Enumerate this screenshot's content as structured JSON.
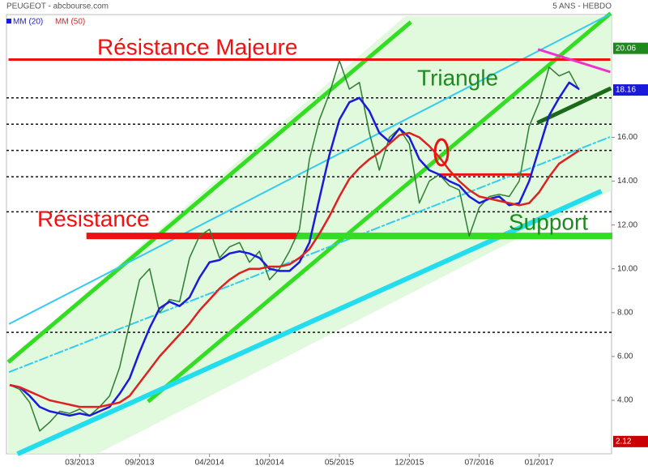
{
  "chart_data": {
    "type": "line",
    "title": "PEUGEOT - abcbourse.com",
    "subtitle": "5 ANS - HEBDO",
    "x": [
      "08/2012",
      "09/2012",
      "10/2012",
      "11/2012",
      "12/2012",
      "01/2013",
      "02/2013",
      "03/2013",
      "04/2013",
      "05/2013",
      "06/2013",
      "07/2013",
      "08/2013",
      "09/2013",
      "10/2013",
      "11/2013",
      "12/2013",
      "01/2014",
      "02/2014",
      "03/2014",
      "04/2014",
      "05/2014",
      "06/2014",
      "07/2014",
      "08/2014",
      "09/2014",
      "10/2014",
      "11/2014",
      "12/2014",
      "01/2015",
      "02/2015",
      "03/2015",
      "04/2015",
      "05/2015",
      "06/2015",
      "07/2015",
      "08/2015",
      "09/2015",
      "10/2015",
      "11/2015",
      "12/2015",
      "01/2016",
      "02/2016",
      "03/2016",
      "04/2016",
      "05/2016",
      "06/2016",
      "07/2016",
      "08/2016",
      "09/2016",
      "10/2016",
      "11/2016",
      "12/2016",
      "01/2017",
      "02/2017",
      "03/2017",
      "04/2017",
      "05/2017"
    ],
    "series": [
      {
        "color": "#2e7d32",
        "values": [
          4.7,
          4.5,
          3.9,
          2.6,
          3.0,
          3.5,
          3.4,
          3.6,
          3.3,
          3.7,
          4.2,
          5.5,
          7.5,
          9.5,
          10.0,
          8.0,
          8.6,
          8.5,
          10.5,
          11.5,
          11.8,
          10.5,
          11.0,
          11.2,
          10.3,
          10.8,
          9.5,
          10.0,
          10.8,
          11.8,
          15.0,
          16.8,
          18.0,
          19.5,
          18.2,
          18.5,
          16.2,
          14.5,
          16.0,
          16.4,
          15.7,
          13.0,
          14.0,
          14.3,
          13.8,
          13.6,
          11.5,
          12.8,
          13.3,
          13.4,
          13.3,
          14.0,
          16.5,
          17.6,
          19.2,
          18.8,
          19.0,
          18.16
        ]
      },
      {
        "name": "MM (20)",
        "color": "#1a1adb",
        "values": [
          4.7,
          4.6,
          4.2,
          3.7,
          3.5,
          3.4,
          3.3,
          3.4,
          3.3,
          3.5,
          3.7,
          4.3,
          5.0,
          6.2,
          7.3,
          8.2,
          8.5,
          8.3,
          8.7,
          9.6,
          10.3,
          10.4,
          10.7,
          10.8,
          10.7,
          10.5,
          10.0,
          9.9,
          9.9,
          10.3,
          11.2,
          13.2,
          15.2,
          16.8,
          17.6,
          17.8,
          17.2,
          16.2,
          15.8,
          16.4,
          16.0,
          15.0,
          14.5,
          14.3,
          14.0,
          13.8,
          13.3,
          13.0,
          13.2,
          13.3,
          12.9,
          13.0,
          14.0,
          15.5,
          17.0,
          17.8,
          18.5,
          18.2
        ]
      },
      {
        "name": "MM (50)",
        "color": "#dd2222",
        "values": [
          4.7,
          4.6,
          4.4,
          4.2,
          4.0,
          3.9,
          3.8,
          3.7,
          3.7,
          3.7,
          3.8,
          3.9,
          4.2,
          4.8,
          5.4,
          6.0,
          6.5,
          7.0,
          7.5,
          8.1,
          8.6,
          9.1,
          9.5,
          9.8,
          10.0,
          10.0,
          10.1,
          10.1,
          10.2,
          10.5,
          10.9,
          11.6,
          12.4,
          13.3,
          14.1,
          14.6,
          15.0,
          15.3,
          15.7,
          16.1,
          16.2,
          16.0,
          15.6,
          15.1,
          14.5,
          14.0,
          13.6,
          13.3,
          13.2,
          13.1,
          13.0,
          12.9,
          13.0,
          13.5,
          14.2,
          14.8,
          15.1,
          15.4
        ]
      }
    ],
    "xlim": [
      "08/2012",
      "08/2017"
    ],
    "xticks": [
      "03/2013",
      "09/2013",
      "04/2014",
      "10/2014",
      "05/2015",
      "12/2015",
      "07/2016",
      "01/2017"
    ],
    "ylim": [
      1.56,
      21.6
    ],
    "yticks": [
      {
        "value": 4,
        "label": "4.00"
      },
      {
        "value": 6,
        "label": "6.00"
      },
      {
        "value": 8,
        "label": "8.00"
      },
      {
        "value": 10,
        "label": "10.00"
      },
      {
        "value": 12,
        "label": "12.00"
      },
      {
        "value": 14,
        "label": "14.00"
      },
      {
        "value": 16,
        "label": "16.00"
      }
    ],
    "markers": [
      {
        "value": 20.06,
        "color": "#1e8a1e"
      },
      {
        "value": 18.16,
        "color": "#1a1adb"
      },
      {
        "value": 2.12,
        "color": "#cc0000"
      }
    ],
    "levels": [
      17.8,
      16.6,
      15.4,
      14.2,
      12.6,
      7.1
    ],
    "trendlines": [
      {
        "x": [
          "08/2012",
          "12/2015"
        ],
        "values": [
          5.8,
          21.2
        ],
        "color": "#33dd22",
        "width": 5
      },
      {
        "x": [
          "10/2013",
          "08/2017"
        ],
        "values": [
          4.0,
          21.6
        ],
        "color": "#33dd22",
        "width": 5
      },
      {
        "x": [
          "09/2012",
          "07/2017"
        ],
        "values": [
          1.6,
          13.5
        ],
        "color": "#22ddee",
        "width": 6
      },
      {
        "x": [
          "08/2012",
          "08/2017"
        ],
        "values": [
          7.5,
          21.6
        ],
        "color": "#33ccee",
        "width": 2
      },
      {
        "x": [
          "08/2012",
          "08/2017"
        ],
        "values": [
          5.3,
          16.0
        ],
        "color": "#33ccee",
        "width": 2,
        "style": "dashdot"
      },
      {
        "x": [
          "08/2012",
          "08/2017"
        ],
        "values": [
          19.55,
          19.55
        ],
        "color": "#ee1111",
        "width": 3
      },
      {
        "x": [
          "04/2013",
          "01/2015"
        ],
        "values": [
          11.5,
          11.5
        ],
        "color": "#ee1111",
        "width": 8
      },
      {
        "x": [
          "01/2015",
          "08/2017"
        ],
        "values": [
          11.5,
          11.5
        ],
        "color": "#33dd22",
        "width": 8
      },
      {
        "x": [
          "03/2016",
          "12/2016"
        ],
        "values": [
          14.3,
          14.3
        ],
        "color": "#ee1111",
        "width": 3
      },
      {
        "x": [
          "01/2017",
          "08/2017"
        ],
        "values": [
          20.0,
          19.0
        ],
        "color": "#ee33cc",
        "width": 3
      },
      {
        "x": [
          "01/2017",
          "08/2017"
        ],
        "values": [
          16.7,
          18.2
        ],
        "color": "#1a6a1a",
        "width": 5
      }
    ],
    "annotations": [
      {
        "text": "Résistance Majeure",
        "color": "#ee1111"
      },
      {
        "text": "Triangle",
        "color": "#1e8a1e"
      },
      {
        "text": "Résistance",
        "color": "#ee1111"
      },
      {
        "text": "Support",
        "color": "#1e8a1e"
      }
    ]
  }
}
